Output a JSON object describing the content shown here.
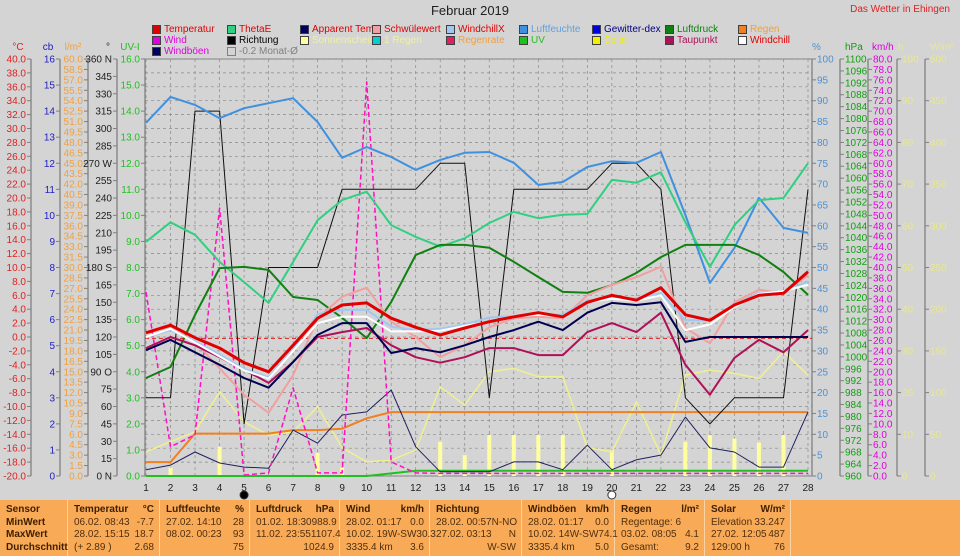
{
  "header": {
    "title": "Februar 2019",
    "site": "Das Wetter in Ehingen"
  },
  "legend": [
    [
      {
        "label": "Temperatur",
        "box": "#e00000",
        "text": "#e00000"
      },
      {
        "label": "ThetaE",
        "box": "#30d080",
        "text": "#e00000"
      },
      {
        "label": "Apparent Tem",
        "box": "#000060",
        "text": "#e00000"
      },
      {
        "label": "Schwülewert",
        "box": "#f0a0a0",
        "text": "#e00000"
      },
      {
        "label": "WindchillX",
        "box": "#a0c8f0",
        "text": "#e00000"
      },
      {
        "label": "Luftfeuchte",
        "box": "#4090e0",
        "text": "#60a0e0"
      },
      {
        "label": "Gewitter-dex",
        "box": "#0000e0",
        "text": "#000080"
      },
      {
        "label": "Luftdruck",
        "box": "#108010",
        "text": "#108010"
      },
      {
        "label": "Regen",
        "box": "#f08020",
        "text": "#f0a040"
      }
    ],
    [
      {
        "label": "Wind",
        "box": "#e000e0",
        "text": "#e000e0"
      },
      {
        "label": "Richtung",
        "box": "#000000",
        "text": "#000000"
      },
      {
        "label": "Sonnenschein",
        "box": "#ffffa0",
        "text": "#f0f0a0"
      },
      {
        "label": "1 Regen",
        "box": "#00d0d0",
        "text": "#f0f0a0"
      },
      {
        "label": "Regenrate",
        "box": "#e02060",
        "text": "#f0a040"
      },
      {
        "label": "UV",
        "box": "#20c020",
        "text": "#20c020"
      },
      {
        "label": "Solar",
        "box": "#f0f000",
        "text": "#f0f000"
      },
      {
        "label": "Taupunkt",
        "box": "#b0105a",
        "text": "#b0105a"
      },
      {
        "label": "Windchill",
        "box": "#ffffff",
        "text": "#e00000"
      }
    ],
    [
      {
        "label": "Windböen",
        "box": "#000060",
        "text": "#e000e0"
      },
      {
        "label": "-0.2 Monat-Ø",
        "box": "none",
        "text": "#808080"
      }
    ]
  ],
  "chart_data": {
    "type": "line",
    "title": "Februar 2019",
    "x": [
      1,
      2,
      3,
      4,
      5,
      6,
      7,
      8,
      9,
      10,
      11,
      12,
      13,
      14,
      15,
      16,
      17,
      18,
      19,
      20,
      21,
      22,
      23,
      24,
      25,
      26,
      27,
      28
    ],
    "grid": true,
    "axes": [
      {
        "id": "temp",
        "unit": "°C",
        "min": -20,
        "max": 40,
        "step": 2,
        "decimals": 1,
        "color": "#e02020",
        "side": "left"
      },
      {
        "id": "cb",
        "unit": "cb",
        "min": 0,
        "max": 16,
        "step": 1,
        "decimals": 0,
        "color": "#2020c0",
        "side": "left"
      },
      {
        "id": "lm2",
        "unit": "l/m²",
        "min": 0,
        "max": 60,
        "step": 1.5,
        "decimals": 1,
        "color": "#f0a040",
        "side": "left"
      },
      {
        "id": "deg",
        "unit": "°",
        "min": 0,
        "max": 360,
        "step": 15,
        "decimals": 0,
        "color": "#202020",
        "side": "left",
        "cardinals": {
          "0": "N",
          "90": "O",
          "180": "S",
          "270": "W",
          "360": "N"
        }
      },
      {
        "id": "uv",
        "unit": "UV-I",
        "min": 0,
        "max": 16,
        "step": 1,
        "decimals": 1,
        "color": "#20c020",
        "side": "left"
      },
      {
        "id": "pct",
        "unit": "%",
        "min": 0,
        "max": 100,
        "step": 5,
        "decimals": 0,
        "color": "#5090d0",
        "side": "right"
      },
      {
        "id": "hpa",
        "unit": "hPa",
        "min": 960,
        "max": 1100,
        "step": 4,
        "decimals": 0,
        "color": "#10a010",
        "side": "right"
      },
      {
        "id": "kmh",
        "unit": "km/h",
        "min": 0,
        "max": 80,
        "step": 2,
        "decimals": 1,
        "color": "#e000e0",
        "side": "right"
      },
      {
        "id": "h",
        "unit": "h",
        "min": 0,
        "max": 100,
        "step": 10,
        "decimals": 0,
        "color": "#e8e890",
        "side": "right"
      },
      {
        "id": "wm2",
        "unit": "W/m²",
        "min": 0,
        "max": 500,
        "step": 50,
        "decimals": 0,
        "color": "#e8e890",
        "side": "right"
      }
    ],
    "bars": {
      "name": "Sonnenschein",
      "axis": "h",
      "color": "#ffffa0",
      "values": [
        0,
        2,
        0,
        7,
        0,
        0,
        0,
        5.5,
        2,
        0,
        0,
        0,
        8.2,
        5,
        9.8,
        9.8,
        9.8,
        9.8,
        0,
        6.2,
        0,
        0,
        8.2,
        9.8,
        9,
        8,
        9.8,
        0
      ]
    },
    "series": [
      {
        "name": "Solar",
        "axis": "wm2",
        "color": "#f0f090",
        "width": 1.5,
        "values": [
          29,
          41,
          53,
          101,
          65,
          49,
          53,
          83,
          34,
          17,
          19,
          31,
          107,
          85,
          125,
          129,
          119,
          119,
          34,
          29,
          89,
          25,
          121,
          127,
          123,
          117,
          149,
          121
        ]
      },
      {
        "name": "UV",
        "axis": "uv",
        "color": "#20c020",
        "width": 2,
        "values": [
          0,
          0,
          0,
          0,
          0,
          0,
          0,
          0,
          0,
          0,
          0.1,
          0.2,
          0.2,
          0.2,
          0.2,
          0.2,
          0.2,
          0.2,
          0.2,
          0.2,
          0.2,
          0.2,
          0.2,
          0.2,
          0.2,
          0.2,
          0.2,
          0.2
        ]
      },
      {
        "name": "Regen",
        "axis": "lm2",
        "color": "#f08020",
        "width": 2,
        "values": [
          2.0,
          2.0,
          6.1,
          6.1,
          6.1,
          6.1,
          6.6,
          6.6,
          6.8,
          8.3,
          9.2,
          9.2,
          9.2,
          9.2,
          9.2,
          9.2,
          9.2,
          9.2,
          9.2,
          9.2,
          9.2,
          9.2,
          9.2,
          9.2,
          9.2,
          9.2,
          9.2,
          9.2
        ]
      },
      {
        "name": "Windböen",
        "axis": "kmh",
        "color": "#202060",
        "width": 1,
        "values": [
          1.2,
          2.1,
          4.6,
          2.5,
          1.7,
          1.5,
          8.8,
          6.3,
          11.7,
          12.3,
          16.5,
          5.6,
          0.8,
          0.8,
          0.8,
          2.7,
          2.7,
          1.2,
          5.9,
          1.2,
          3.1,
          4.0,
          11.3,
          5.4,
          4.6,
          1.7,
          1.7,
          12.3
        ]
      },
      {
        "name": "Wind",
        "axis": "kmh",
        "color": "#ff10c0",
        "width": 1.5,
        "dash": "5,3",
        "values": [
          35.3,
          5.6,
          7.9,
          51.4,
          0.2,
          0.6,
          16.9,
          0.6,
          0.6,
          75.6,
          2.7,
          0.6,
          0.5,
          0.5,
          0.5,
          0.5,
          0.5,
          0.5,
          0.5,
          0.5,
          0.5,
          0.5,
          0.5,
          0.5,
          0.5,
          0.5,
          0.5,
          0.5
        ]
      },
      {
        "name": "Richtung",
        "axis": "deg",
        "color": "#101010",
        "width": 1,
        "values": [
          67.5,
          67.5,
          315,
          315,
          45,
          180,
          180,
          180,
          247.5,
          247.5,
          247.5,
          247.5,
          270,
          270,
          67.5,
          247.5,
          247.5,
          247.5,
          247.5,
          270,
          270,
          247.5,
          67.5,
          45,
          67.5,
          67.5,
          67.5,
          247.5
        ]
      },
      {
        "name": "Luftfeuchte",
        "axis": "pct",
        "color": "#4090e0",
        "width": 2,
        "values": [
          84.7,
          90.9,
          89.0,
          85.8,
          88.2,
          89.4,
          90.6,
          84.9,
          76.3,
          78.9,
          76.5,
          73.4,
          75.8,
          77.5,
          77.7,
          75.1,
          69.8,
          70.5,
          74.1,
          75.5,
          75.1,
          77.7,
          62.6,
          46.3,
          54.7,
          66.7,
          59.5,
          58.3
        ]
      },
      {
        "name": "ThetaE",
        "axis": "temp",
        "color": "#30d080",
        "width": 2,
        "values": [
          13.7,
          16.5,
          14.7,
          10.8,
          7.9,
          4.9,
          10.8,
          16.8,
          19.7,
          20.9,
          16.1,
          14.4,
          13.0,
          14.2,
          16.4,
          18.0,
          17.1,
          17.6,
          17.7,
          22.6,
          22.2,
          23.7,
          16.5,
          10.1,
          16.1,
          19.7,
          20.0,
          25.0
        ]
      },
      {
        "name": "Luftdruck",
        "axis": "hpa",
        "color": "#108010",
        "width": 2,
        "values": [
          992.9,
          996.6,
          1014.1,
          1029.8,
          1030.2,
          1029.2,
          1020.1,
          1019.1,
          1013.1,
          1006.3,
          1018.4,
          1034.2,
          1037.6,
          1037.6,
          1036.6,
          1031.9,
          1026.8,
          1021.8,
          1021.5,
          1024.1,
          1028.2,
          1033.5,
          1037.6,
          1037.6,
          1037.6,
          1034.2,
          1028.5,
          1020.8
        ]
      },
      {
        "name": "Schwülewert",
        "axis": "temp",
        "color": "#f0a0a0",
        "width": 2,
        "values": [
          -0.1,
          1.4,
          -0.7,
          -4.5,
          -8.3,
          -10.9,
          -5.5,
          2.7,
          5.8,
          7.1,
          2.2,
          0.0,
          -2.9,
          -1.2,
          1.4,
          2.7,
          2.9,
          2.7,
          6.0,
          7.5,
          8.6,
          10.1,
          1.3,
          -0.9,
          5.0,
          6.8,
          6.3,
          8.9
        ]
      },
      {
        "name": "Taupunkt",
        "axis": "temp",
        "color": "#b0105a",
        "width": 2,
        "values": [
          -1.6,
          0.0,
          -1.2,
          -2.9,
          -4.7,
          -6.6,
          -3.6,
          0.0,
          0.7,
          1.3,
          -1.2,
          -2.9,
          -3.7,
          -2.9,
          -1.6,
          -1.6,
          -2.6,
          -2.6,
          0.7,
          2.0,
          0.7,
          3.5,
          -4.0,
          -8.3,
          -3.0,
          -0.4,
          -2.2,
          1.0
        ]
      },
      {
        "name": "Apparent Tem",
        "axis": "temp",
        "color": "#000050",
        "width": 2,
        "values": [
          -1.9,
          -0.4,
          -2.2,
          -4.0,
          -5.9,
          -7.3,
          -3.6,
          0.3,
          2.0,
          2.0,
          -2.3,
          -1.6,
          -2.2,
          -1.2,
          0.0,
          1.0,
          2.2,
          1.0,
          3.5,
          4.9,
          4.6,
          5.0,
          -0.7,
          0.0,
          0.0,
          0.0,
          0.0,
          0.0
        ]
      },
      {
        "name": "WindchillX",
        "axis": "temp",
        "color": "#a0c8f0",
        "width": 2,
        "values": [
          0.0,
          1.0,
          -0.6,
          -2.5,
          -4.6,
          -5.8,
          -1.8,
          3.3,
          3.9,
          3.9,
          1.5,
          1.0,
          1.2,
          1.8,
          2.8,
          3.0,
          3.3,
          3.2,
          5.3,
          5.6,
          5.6,
          6.3,
          2.4,
          2.4,
          4.6,
          6.4,
          6.6,
          8.0
        ]
      },
      {
        "name": "Windchill",
        "axis": "temp",
        "color": "#ffffff",
        "width": 2,
        "values": [
          0.0,
          1.2,
          -0.8,
          -2.8,
          -4.8,
          -6.0,
          -2.0,
          2.0,
          2.9,
          2.9,
          0.8,
          0.8,
          0.9,
          1.6,
          2.2,
          3.0,
          3.2,
          3.0,
          5.0,
          5.5,
          5.2,
          6.0,
          1.0,
          1.8,
          4.3,
          6.2,
          6.6,
          7.5
        ]
      },
      {
        "name": "Temperatur",
        "axis": "temp",
        "color": "#e00000",
        "width": 3,
        "values": [
          0.6,
          1.7,
          -0.1,
          -1.6,
          -3.7,
          -5.0,
          -1.2,
          2.7,
          4.6,
          4.9,
          2.7,
          1.4,
          0.3,
          1.3,
          2.2,
          2.9,
          3.5,
          2.9,
          5.0,
          6.0,
          5.3,
          7.1,
          3.2,
          2.4,
          4.6,
          6.0,
          6.3,
          9.4
        ]
      }
    ],
    "reference_line": {
      "name": "-0.2 Monat-Ø",
      "axis": "temp",
      "value": -0.2,
      "color": "#e02020"
    },
    "moon_phases": [
      {
        "day": 5,
        "phase": "new-moon"
      },
      {
        "day": 20,
        "phase": "full-moon"
      }
    ]
  },
  "table": {
    "sensor": {
      "title": "Sensor",
      "rows": [
        "MinWert",
        "MaxWert",
        "Durchschnitt"
      ]
    },
    "columns": [
      {
        "title": "Temperatur",
        "unit": "°C",
        "rows": [
          [
            "06.02.  08:43",
            "-7.7"
          ],
          [
            "28.02.  15:15",
            "18.7"
          ],
          [
            "(+ 2.89 )",
            "2.68"
          ]
        ]
      },
      {
        "title": "Luftfeuchte",
        "unit": "%",
        "rows": [
          [
            "27.02.  14:10",
            "28"
          ],
          [
            "08.02.  00:23",
            "93"
          ],
          [
            "",
            "75"
          ]
        ]
      },
      {
        "title": "Luftdruck",
        "unit": "hPa",
        "rows": [
          [
            "01.02.  18:30",
            "988.9"
          ],
          [
            "11.02.  23:55",
            "1107.4"
          ],
          [
            "",
            "1024.9"
          ]
        ]
      },
      {
        "title": "Wind",
        "unit": "km/h",
        "rows": [
          [
            "28.02.  01:17",
            "0.0"
          ],
          [
            "10.02.  19W-SW",
            "30.3"
          ],
          [
            "3335.4 km",
            "3.6"
          ]
        ]
      },
      {
        "title": "Richtung",
        "unit": "",
        "rows": [
          [
            "28.02.  00:57",
            "N-NO"
          ],
          [
            "27.02.  03:13",
            "N"
          ],
          [
            "",
            "W-SW"
          ]
        ]
      },
      {
        "title": "Windböen",
        "unit": "km/h",
        "rows": [
          [
            "28.02.  01:17",
            "0.0"
          ],
          [
            "10.02.  14W-SW",
            "74.1"
          ],
          [
            "3335.4 km",
            "5.0"
          ]
        ]
      },
      {
        "title": "Regen",
        "unit": "l/m²",
        "rows": [
          [
            "Regentage: 6",
            ""
          ],
          [
            "03.02.  08:05",
            "4.1"
          ],
          [
            "Gesamt:",
            "9.2"
          ]
        ]
      },
      {
        "title": "Solar",
        "unit": "W/m²",
        "rows": [
          [
            "Elevation",
            "33.247"
          ],
          [
            "27.02.  12:05",
            "487"
          ],
          [
            "129:00 h",
            "76"
          ]
        ]
      }
    ]
  }
}
